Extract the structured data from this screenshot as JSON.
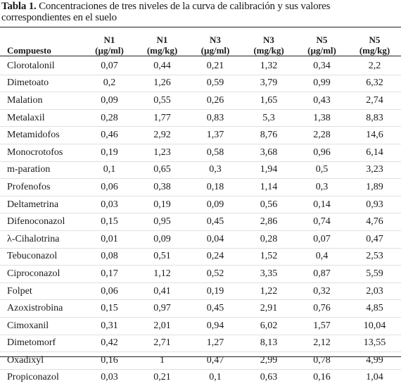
{
  "caption": {
    "label": "Tabla 1.",
    "text": " Concentraciones de tres niveles de la curva de calibración y sus valores correspondientes en el suelo"
  },
  "header": {
    "compound": "Compuesto",
    "columns": [
      {
        "level": "N1",
        "unit": "(µg/ml)"
      },
      {
        "level": "N1",
        "unit": "(mg/kg)"
      },
      {
        "level": "N3",
        "unit": "(µg/ml)"
      },
      {
        "level": "N3",
        "unit": "(mg/kg)"
      },
      {
        "level": "N5",
        "unit": "(µg/ml)"
      },
      {
        "level": "N5",
        "unit": "(mg/kg)"
      }
    ]
  },
  "rows": [
    {
      "name": "Clorotalonil",
      "values": [
        "0,07",
        "0,44",
        "0,21",
        "1,32",
        "0,34",
        "2,2"
      ]
    },
    {
      "name": "Dimetoato",
      "values": [
        "0,2",
        "1,26",
        "0,59",
        "3,79",
        "0,99",
        "6,32"
      ]
    },
    {
      "name": "Malation",
      "values": [
        "0,09",
        "0,55",
        "0,26",
        "1,65",
        "0,43",
        "2,74"
      ]
    },
    {
      "name": "Metalaxil",
      "values": [
        "0,28",
        "1,77",
        "0,83",
        "5,3",
        "1,38",
        "8,83"
      ]
    },
    {
      "name": "Metamidofos",
      "values": [
        "0,46",
        "2,92",
        "1,37",
        "8,76",
        "2,28",
        "14,6"
      ]
    },
    {
      "name": "Monocrotofos",
      "values": [
        "0,19",
        "1,23",
        "0,58",
        "3,68",
        "0,96",
        "6,14"
      ]
    },
    {
      "name": "m-paration",
      "values": [
        "0,1",
        "0,65",
        "0,3",
        "1,94",
        "0,5",
        "3,23"
      ]
    },
    {
      "name": "Profenofos",
      "values": [
        "0,06",
        "0,38",
        "0,18",
        "1,14",
        "0,3",
        "1,89"
      ]
    },
    {
      "name": "Deltametrina",
      "values": [
        "0,03",
        "0,19",
        "0,09",
        "0,56",
        "0,14",
        "0,93"
      ]
    },
    {
      "name": "Difenoconazol",
      "values": [
        "0,15",
        "0,95",
        "0,45",
        "2,86",
        "0,74",
        "4,76"
      ]
    },
    {
      "name": "λ-Cihalotrina",
      "values": [
        "0,01",
        "0,09",
        "0,04",
        "0,28",
        "0,07",
        "0,47"
      ]
    },
    {
      "name": "Tebuconazol",
      "values": [
        "0,08",
        "0,51",
        "0,24",
        "1,52",
        "0,4",
        "2,53"
      ]
    },
    {
      "name": "Ciproconazol",
      "values": [
        "0,17",
        "1,12",
        "0,52",
        "3,35",
        "0,87",
        "5,59"
      ]
    },
    {
      "name": "Folpet",
      "values": [
        "0,06",
        "0,41",
        "0,19",
        "1,22",
        "0,32",
        "2,03"
      ]
    },
    {
      "name": "Azoxistrobina",
      "values": [
        "0,15",
        "0,97",
        "0,45",
        "2,91",
        "0,76",
        "4,85"
      ]
    },
    {
      "name": "Cimoxanil",
      "values": [
        "0,31",
        "2,01",
        "0,94",
        "6,02",
        "1,57",
        "10,04"
      ]
    },
    {
      "name": "Dimetomorf",
      "values": [
        "0,42",
        "2,71",
        "1,27",
        "8,13",
        "2,12",
        "13,55"
      ]
    },
    {
      "name": "Oxadixyl",
      "values": [
        "0,16",
        "1",
        "0,47",
        "2,99",
        "0,78",
        "4,99"
      ]
    },
    {
      "name": "Propiconazol",
      "values": [
        "0,03",
        "0,21",
        "0,1",
        "0,63",
        "0,16",
        "1,04"
      ]
    }
  ]
}
